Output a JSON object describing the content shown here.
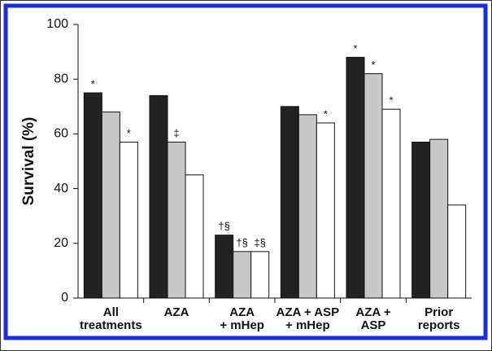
{
  "chart_data": {
    "type": "bar",
    "ylabel": "Survival (%)",
    "categories": [
      [
        "All",
        "treatments"
      ],
      [
        "AZA"
      ],
      [
        "AZA",
        "+ mHep"
      ],
      [
        "AZA + ASP",
        "+ mHep"
      ],
      [
        "AZA +",
        "ASP"
      ],
      [
        "Prior",
        "reports"
      ]
    ],
    "series": [
      {
        "color": "#222222",
        "values": [
          75,
          74,
          23,
          70,
          88,
          57
        ],
        "annotations": [
          "*",
          null,
          "†§",
          null,
          "*",
          null
        ]
      },
      {
        "color": "#c8c8c8",
        "values": [
          68,
          57,
          17,
          67,
          82,
          58
        ],
        "annotations": [
          null,
          "‡",
          "†§",
          null,
          "*",
          null
        ]
      },
      {
        "color": "#ffffff",
        "values": [
          57,
          45,
          17,
          64,
          69,
          34
        ],
        "annotations": [
          "*",
          null,
          "‡§",
          "*",
          "*",
          null
        ]
      }
    ],
    "ylim": [
      0,
      100
    ],
    "yticks": [
      0,
      20,
      40,
      60,
      80,
      100
    ],
    "grid": false
  }
}
